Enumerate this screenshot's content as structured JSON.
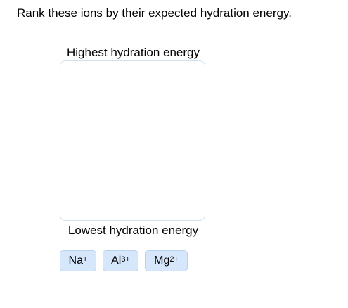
{
  "question": {
    "text": "Rank these ions by their expected hydration energy."
  },
  "ranking": {
    "top_label": "Highest hydration energy",
    "bottom_label": "Lowest hydration energy",
    "drop_zone_items": []
  },
  "tiles": [
    {
      "symbol": "Na",
      "charge": "+"
    },
    {
      "symbol": "Al",
      "charge": "3+"
    },
    {
      "symbol": "Mg",
      "charge": "2+"
    }
  ],
  "colors": {
    "tile_background": "#d6e7fb",
    "tile_border": "#b9d3ef",
    "drop_zone_border": "#cfe0ee"
  }
}
